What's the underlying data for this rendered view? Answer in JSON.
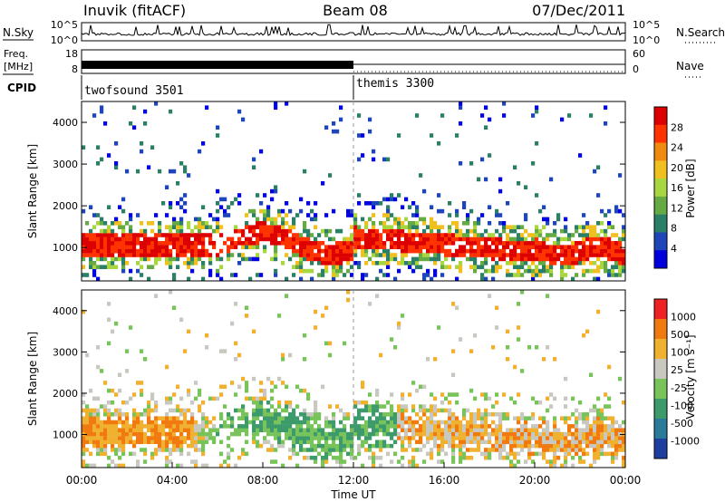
{
  "header": {
    "station": "Inuvik (fitACF)",
    "beam": "Beam 08",
    "date": "07/Dec/2011"
  },
  "chart_data": [
    {
      "type": "line",
      "panel": "noise",
      "left_label": "N.Sky",
      "right_label": "N.Search",
      "left_ticks": [
        "10^5",
        "10^0"
      ],
      "right_ticks": [
        "10^5",
        "10^0"
      ],
      "colors": {
        "line": "#000000"
      }
    },
    {
      "type": "line",
      "panel": "frequency",
      "left_label_line1": "Freq.",
      "left_label_line2": "[MHz]",
      "left_ticks": [
        "18",
        "8"
      ],
      "right_label": "Nave",
      "right_ticks": [
        "60",
        "0"
      ],
      "freq_mhz": 10.5,
      "nave_value": 0
    },
    {
      "type": "table",
      "panel": "cpid",
      "label": "CPID",
      "segments": [
        {
          "name": "twofsound 3501",
          "start_hour": 0,
          "end_hour": 12
        },
        {
          "name": "themis 3300",
          "start_hour": 12,
          "end_hour": 24
        }
      ]
    },
    {
      "type": "heatmap",
      "panel": "power",
      "ylabel": "Slant Range [km]",
      "yticks": [
        1000,
        2000,
        3000,
        4000
      ],
      "ylim": [
        200,
        4500
      ],
      "colorbar_label": "Power [dB]",
      "colorbar_ticks": [
        "28",
        "24",
        "20",
        "16",
        "12",
        "8",
        "4"
      ],
      "colormap": [
        "#0000dd",
        "#1f46b8",
        "#2b7f66",
        "#66aa44",
        "#a8d640",
        "#f0c020",
        "#f08a10",
        "#ff3300",
        "#dd0000"
      ]
    },
    {
      "type": "heatmap",
      "panel": "velocity",
      "ylabel": "Slant Range [km]",
      "yticks": [
        1000,
        2000,
        3000,
        4000
      ],
      "ylim": [
        200,
        4500
      ],
      "colorbar_label": "Velocity [m s⁻¹]",
      "colorbar_ticks": [
        "1000",
        "500",
        "100",
        "25",
        "-25",
        "-100",
        "-500",
        "-1000"
      ],
      "colormap": [
        "#1f3fa0",
        "#2a7a9a",
        "#3d9a6a",
        "#79c45a",
        "#c8c8c0",
        "#f0b030",
        "#f07a10",
        "#ee2222"
      ],
      "xlabel": "Time UT",
      "xticks": [
        "00:00",
        "04:00",
        "08:00",
        "12:00",
        "16:00",
        "20:00",
        "00:00"
      ],
      "xlim": [
        0,
        24
      ]
    }
  ]
}
